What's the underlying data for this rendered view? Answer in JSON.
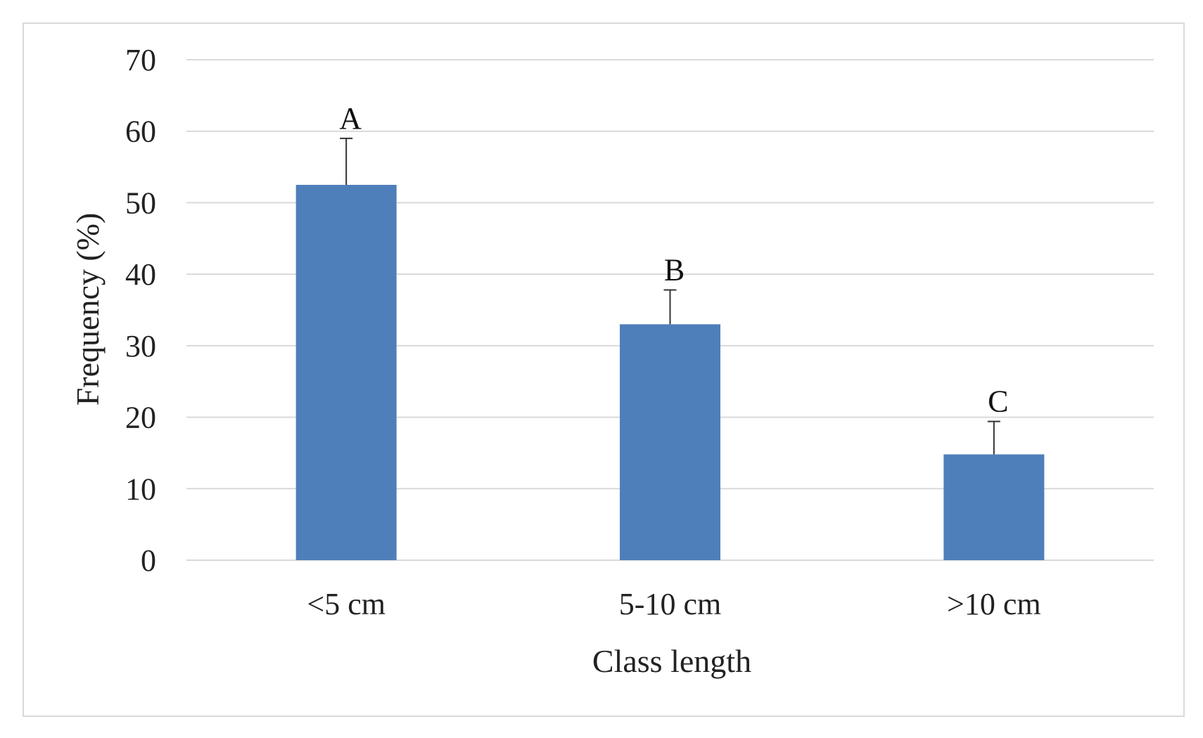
{
  "chart_data": {
    "type": "bar",
    "categories": [
      "<5 cm",
      "5-10 cm",
      ">10 cm"
    ],
    "values": [
      52.5,
      33,
      14.8
    ],
    "error_bars": [
      6.5,
      4.8,
      4.6
    ],
    "significance_labels": [
      "A",
      "B",
      "C"
    ],
    "title": "",
    "xlabel": "Class length",
    "ylabel": "Frequency  (%)",
    "ylim": [
      0,
      70
    ],
    "yticks": [
      0,
      10,
      20,
      30,
      40,
      50,
      60,
      70
    ],
    "grid": true,
    "legend": "none",
    "bar_color": "#4f7fba",
    "grid_color": "#d9d9d9",
    "error_bar_color": "#333333"
  }
}
